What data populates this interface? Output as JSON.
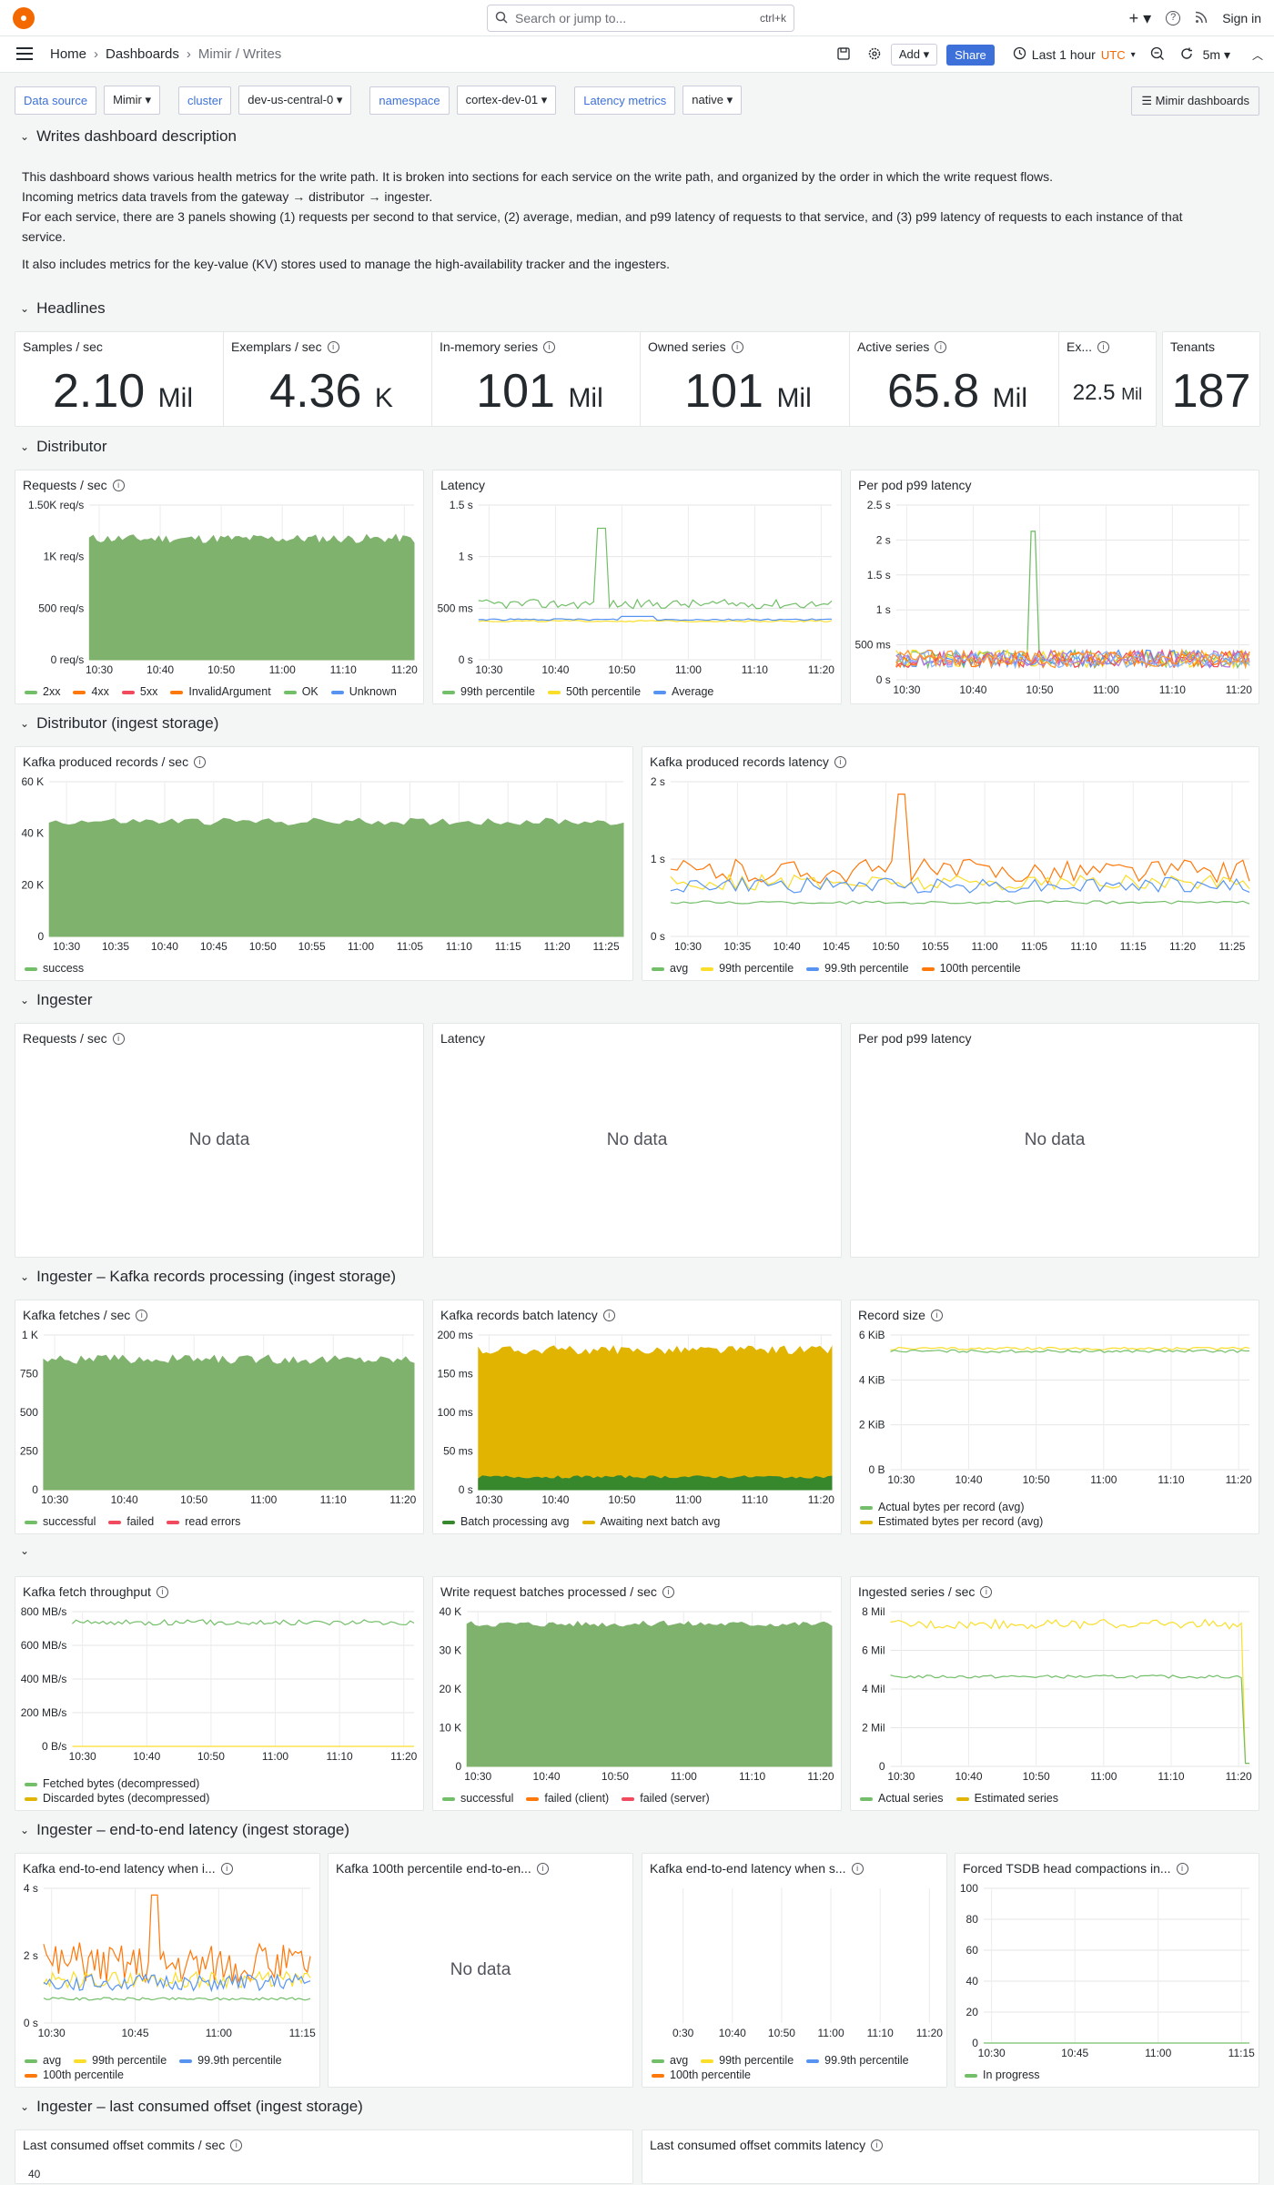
{
  "topbar": {
    "search_placeholder": "Search or jump to...",
    "search_shortcut": "ctrl+k",
    "add_icon": "+",
    "help_icon": "?",
    "signin": "Sign in"
  },
  "nav": {
    "breadcrumbs": [
      "Home",
      "Dashboards",
      "Mimir / Writes"
    ],
    "add": "Add",
    "share": "Share",
    "timerange": "Last 1 hour",
    "timezone": "UTC",
    "refresh": "5m"
  },
  "variables": [
    {
      "label": "Data source",
      "value": "Mimir"
    },
    {
      "label": "cluster",
      "value": "dev-us-central-0"
    },
    {
      "label": "namespace",
      "value": "cortex-dev-01"
    },
    {
      "label": "Latency metrics",
      "value": "native"
    }
  ],
  "dashboards_link": "Mimir dashboards",
  "rows": {
    "r0": "Writes dashboard description",
    "r1": "Headlines",
    "r2": "Distributor",
    "r3": "Distributor (ingest storage)",
    "r4": "Ingester",
    "r5": "Ingester – Kafka records processing (ingest storage)",
    "r6": "",
    "r7": "Ingester – end-to-end latency (ingest storage)",
    "r8": "Ingester – last consumed offset (ingest storage)"
  },
  "description": {
    "p1": "This dashboard shows various health metrics for the write path. It is broken into sections for each service on the write path, and organized by the order in which the write request flows.",
    "p2": "Incoming metrics data travels from the gateway → distributor → ingester.",
    "p3": "For each service, there are 3 panels showing (1) requests per second to that service, (2) average, median, and p99 latency of requests to that service, and (3) p99 latency of requests to each instance of that service.",
    "p4": "It also includes metrics for the key-value (KV) stores used to manage the high-availability tracker and the ingesters."
  },
  "stats": [
    {
      "title": "Samples / sec",
      "value": "2.10",
      "unit": "Mil"
    },
    {
      "title": "Exemplars / sec",
      "value": "4.36",
      "unit": "K"
    },
    {
      "title": "In-memory series",
      "value": "101",
      "unit": "Mil"
    },
    {
      "title": "Owned series",
      "value": "101",
      "unit": "Mil"
    },
    {
      "title": "Active series",
      "value": "65.8",
      "unit": "Mil"
    },
    {
      "title": "Ex...",
      "value": "22.5",
      "unit": "Mil"
    },
    {
      "title": "Tenants",
      "value": "187",
      "unit": ""
    }
  ],
  "panels": {
    "dist_rps": {
      "title": "Requests / sec",
      "legend": [
        "2xx",
        "4xx",
        "5xx",
        "InvalidArgument",
        "OK",
        "Unknown"
      ],
      "yticks": [
        "1.50K req/s",
        "1K req/s",
        "500 req/s",
        "0 req/s"
      ],
      "xticks": [
        "10:30",
        "10:40",
        "10:50",
        "11:00",
        "11:10",
        "11:20"
      ]
    },
    "dist_lat": {
      "title": "Latency",
      "legend": [
        "99th percentile",
        "50th percentile",
        "Average"
      ],
      "yticks": [
        "1.5 s",
        "1 s",
        "500 ms",
        "0 s"
      ],
      "xticks": [
        "10:30",
        "10:40",
        "10:50",
        "11:00",
        "11:10",
        "11:20"
      ]
    },
    "dist_pod": {
      "title": "Per pod p99 latency",
      "yticks": [
        "2.5 s",
        "2 s",
        "1.5 s",
        "1 s",
        "500 ms",
        "0 s"
      ],
      "xticks": [
        "10:30",
        "10:40",
        "10:50",
        "11:00",
        "11:10",
        "11:20"
      ]
    },
    "kafka_prod": {
      "title": "Kafka produced records / sec",
      "legend": [
        "success"
      ],
      "yticks": [
        "60 K",
        "40 K",
        "20 K",
        "0"
      ],
      "xticks": [
        "10:30",
        "10:35",
        "10:40",
        "10:45",
        "10:50",
        "10:55",
        "11:00",
        "11:05",
        "11:10",
        "11:15",
        "11:20",
        "11:25"
      ]
    },
    "kafka_prod_lat": {
      "title": "Kafka produced records latency",
      "legend": [
        "avg",
        "99th percentile",
        "99.9th percentile",
        "100th percentile"
      ],
      "yticks": [
        "2 s",
        "1 s",
        "0 s"
      ],
      "xticks": [
        "10:30",
        "10:35",
        "10:40",
        "10:45",
        "10:50",
        "10:55",
        "11:00",
        "11:05",
        "11:10",
        "11:15",
        "11:20",
        "11:25"
      ]
    },
    "ing_rps": {
      "title": "Requests / sec",
      "nodata": "No data"
    },
    "ing_lat": {
      "title": "Latency",
      "nodata": "No data"
    },
    "ing_pod": {
      "title": "Per pod p99 latency",
      "nodata": "No data"
    },
    "kafka_fetch": {
      "title": "Kafka fetches / sec",
      "legend": [
        "successful",
        "failed",
        "read errors"
      ],
      "yticks": [
        "1 K",
        "750",
        "500",
        "250",
        "0"
      ],
      "xticks": [
        "10:30",
        "10:40",
        "10:50",
        "11:00",
        "11:10",
        "11:20"
      ]
    },
    "kafka_batch": {
      "title": "Kafka records batch latency",
      "legend": [
        "Batch processing avg",
        "Awaiting next batch avg"
      ],
      "yticks": [
        "200 ms",
        "150 ms",
        "100 ms",
        "50 ms",
        "0 s"
      ],
      "xticks": [
        "10:30",
        "10:40",
        "10:50",
        "11:00",
        "11:10",
        "11:20"
      ]
    },
    "record_size": {
      "title": "Record size",
      "legend": [
        "Actual bytes per record (avg)",
        "Estimated bytes per record (avg)"
      ],
      "yticks": [
        "6 KiB",
        "4 KiB",
        "2 KiB",
        "0 B"
      ],
      "xticks": [
        "10:30",
        "10:40",
        "10:50",
        "11:00",
        "11:10",
        "11:20"
      ]
    },
    "fetch_tp": {
      "title": "Kafka fetch throughput",
      "legend": [
        "Fetched bytes (decompressed)",
        "Discarded bytes (decompressed)"
      ],
      "yticks": [
        "800 MB/s",
        "600 MB/s",
        "400 MB/s",
        "200 MB/s",
        "0 B/s"
      ],
      "xticks": [
        "10:30",
        "10:40",
        "10:50",
        "11:00",
        "11:10",
        "11:20"
      ]
    },
    "write_batches": {
      "title": "Write request batches processed / sec",
      "legend": [
        "successful",
        "failed (client)",
        "failed (server)"
      ],
      "yticks": [
        "40 K",
        "30 K",
        "20 K",
        "10 K",
        "0"
      ],
      "xticks": [
        "10:30",
        "10:40",
        "10:50",
        "11:00",
        "11:10",
        "11:20"
      ]
    },
    "ingested": {
      "title": "Ingested series / sec",
      "legend": [
        "Actual series",
        "Estimated series"
      ],
      "yticks": [
        "8 Mil",
        "6 Mil",
        "4 Mil",
        "2 Mil",
        "0"
      ],
      "xticks": [
        "10:30",
        "10:40",
        "10:50",
        "11:00",
        "11:10",
        "11:20"
      ]
    },
    "e2e_when": {
      "title": "Kafka end-to-end latency when i...",
      "legend": [
        "avg",
        "99th percentile",
        "99.9th percentile",
        "100th percentile"
      ],
      "yticks": [
        "4 s",
        "2 s",
        "0 s"
      ],
      "xticks": [
        "10:30",
        "10:45",
        "11:00",
        "11:15"
      ]
    },
    "e2e_100": {
      "title": "Kafka 100th percentile end-to-en...",
      "nodata": "No data"
    },
    "e2e_s": {
      "title": "Kafka end-to-end latency when s...",
      "legend": [
        "avg",
        "99th percentile",
        "99.9th percentile",
        "100th percentile"
      ],
      "xticks": [
        "0:30",
        "10:40",
        "10:50",
        "11:00",
        "11:10",
        "11:20"
      ]
    },
    "tsdb": {
      "title": "Forced TSDB head compactions in...",
      "legend": [
        "In progress"
      ],
      "yticks": [
        "100",
        "80",
        "60",
        "40",
        "20",
        "0"
      ],
      "xticks": [
        "10:30",
        "10:45",
        "11:00",
        "11:15"
      ]
    },
    "offset_commits": {
      "title": "Last consumed offset commits / sec",
      "yticks": [
        "40"
      ]
    },
    "offset_lat": {
      "title": "Last consumed offset commits latency"
    }
  },
  "colors": {
    "green": "#73bf69",
    "green_fill": "#7eb26d",
    "orange": "#ff780a",
    "yellow": "#fade2a",
    "blue": "#5794f2",
    "red": "#f2495c",
    "darkgreen": "#37872d",
    "gold": "#e0b400"
  }
}
